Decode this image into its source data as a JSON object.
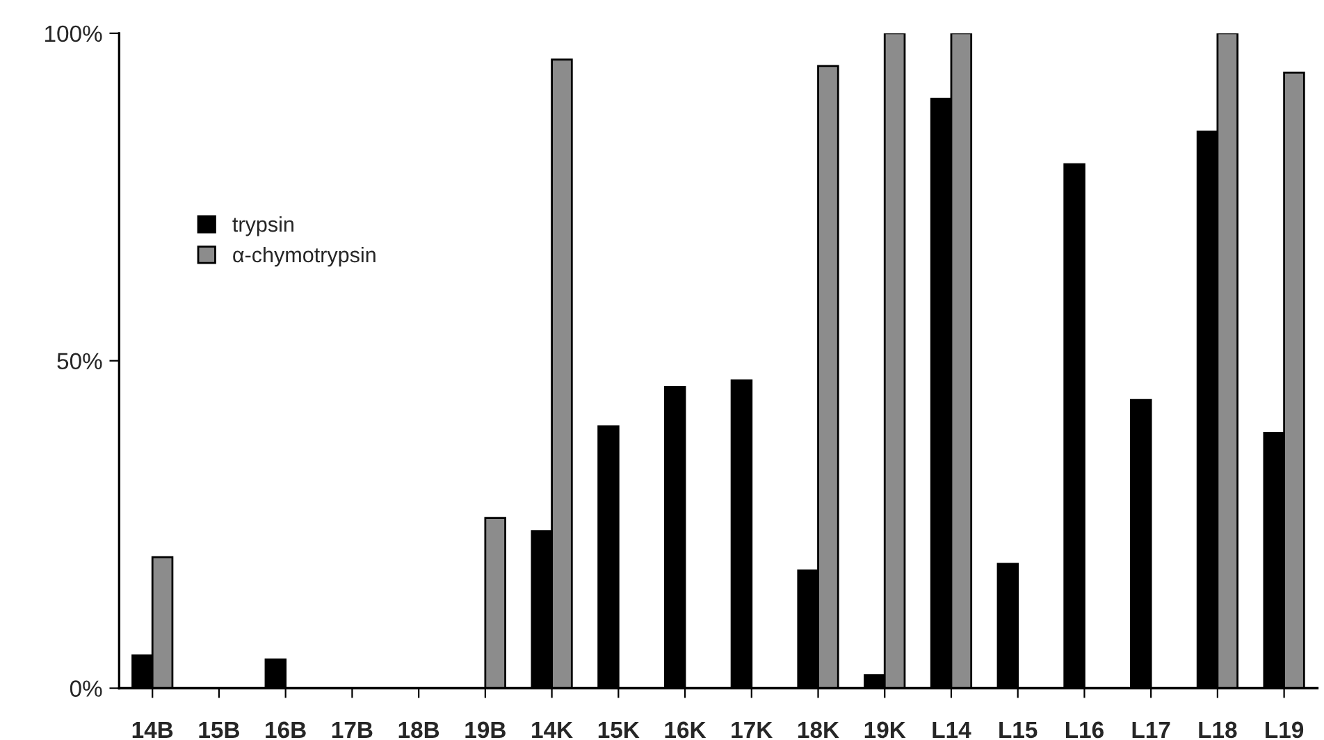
{
  "chart_data": {
    "type": "bar",
    "categories": [
      "14B",
      "15B",
      "16B",
      "17B",
      "18B",
      "19B",
      "14K",
      "15K",
      "16K",
      "17K",
      "18K",
      "19K",
      "L14",
      "L15",
      "L16",
      "L17",
      "L18",
      "L19"
    ],
    "series": [
      {
        "name": "trypsin",
        "color": "#000000",
        "values": [
          5,
          0,
          4.4,
          0,
          0,
          0,
          24,
          40,
          46,
          47,
          18,
          2,
          90,
          19,
          80,
          44,
          85,
          39
        ]
      },
      {
        "name": "α-chymotrypsin",
        "color": "#8c8c8c",
        "values": [
          20,
          0,
          0,
          0,
          0,
          26,
          96,
          0,
          0,
          0,
          95,
          100,
          100,
          0,
          0,
          0,
          100,
          94
        ]
      }
    ],
    "ylim": [
      0,
      100
    ],
    "yticks": [
      {
        "value": 0,
        "label": "0%"
      },
      {
        "value": 50,
        "label": "50%"
      },
      {
        "value": 100,
        "label": "100%"
      }
    ],
    "grid": false,
    "legend": "top left"
  }
}
